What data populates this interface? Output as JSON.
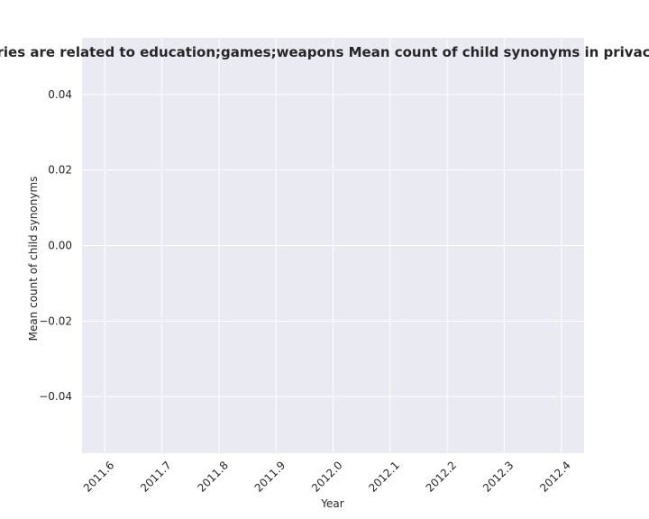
{
  "chart_data": {
    "type": "line",
    "title": "Categories are related to education;games;weapons Mean count of child synonyms in privacy policies",
    "xlabel": "Year",
    "ylabel": "Mean count of child synonyms",
    "xlim": [
      2011.56,
      2012.44
    ],
    "ylim": [
      -0.055,
      0.055
    ],
    "x_ticks": [
      "2011.6",
      "2011.7",
      "2011.8",
      "2011.9",
      "2012.0",
      "2012.1",
      "2012.2",
      "2012.3",
      "2012.4"
    ],
    "y_ticks": [
      "0.04",
      "0.02",
      "0.00",
      "−0.02",
      "−0.04"
    ],
    "x": [],
    "values": [],
    "grid": true,
    "colors": {
      "plot_background": "#eaeaf2",
      "grid": "#ffffff",
      "text": "#262626"
    }
  }
}
